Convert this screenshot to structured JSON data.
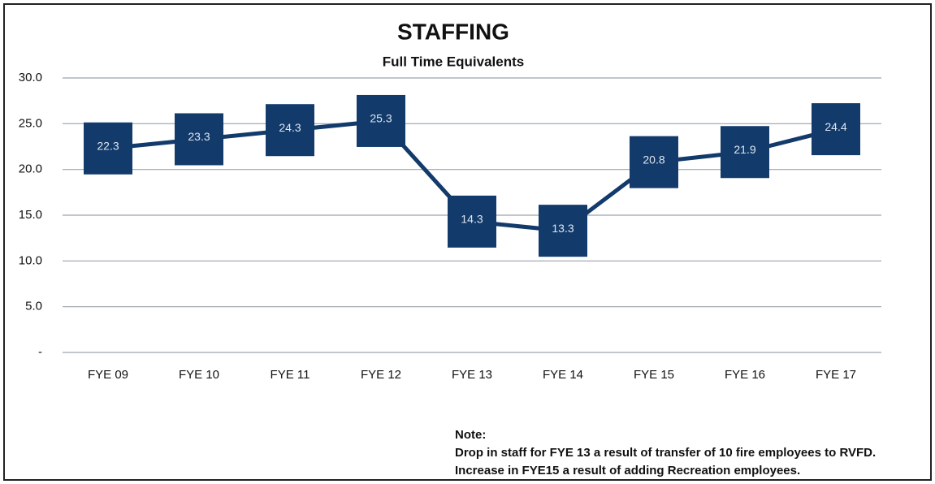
{
  "chart_data": {
    "type": "line",
    "title": "STAFFING",
    "subtitle": "Full Time Equivalents",
    "categories": [
      "FYE 09",
      "FYE 10",
      "FYE 11",
      "FYE 12",
      "FYE 13",
      "FYE 14",
      "FYE 15",
      "FYE 16",
      "FYE 17"
    ],
    "series": [
      {
        "name": "Full Time Equivalents",
        "color": "#123a6b",
        "values": [
          22.3,
          23.3,
          24.3,
          25.3,
          14.3,
          13.3,
          20.8,
          21.9,
          24.4
        ]
      }
    ],
    "ylim": [
      0,
      30
    ],
    "yticks": [
      {
        "value": 0,
        "label": "-"
      },
      {
        "value": 5,
        "label": "5.0"
      },
      {
        "value": 10,
        "label": "10.0"
      },
      {
        "value": 15,
        "label": "15.0"
      },
      {
        "value": 20,
        "label": "20.0"
      },
      {
        "value": 25,
        "label": "25.0"
      },
      {
        "value": 30,
        "label": "30.0"
      }
    ],
    "grid": true,
    "note": {
      "title": "Note:",
      "lines": [
        "Drop in staff for FYE 13 a result of transfer of 10 fire employees to RVFD.",
        "Increase in FYE15 a result of adding Recreation employees."
      ]
    }
  }
}
